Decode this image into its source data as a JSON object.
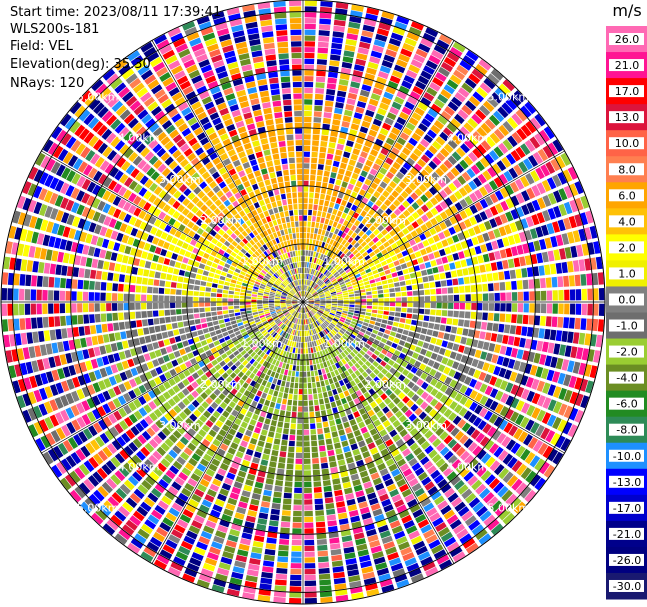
{
  "header": {
    "start_time": "Start time: 2023/08/11 17:39:41",
    "instrument": "WLS200s-181",
    "field": "Field: VEL",
    "elevation": "Elevation(deg): 35.30",
    "nrays": "NRays: 120"
  },
  "chart_data": {
    "type": "heatmap",
    "projection": "polar-ppi",
    "n_rays": 120,
    "range_rings_km": [
      1.0,
      2.0,
      3.0,
      4.0,
      5.0
    ],
    "max_range_km": 5.2,
    "spoke_interval_deg": 30,
    "ring_labels": {
      "upper_left": [
        "1.00km",
        "2.00km",
        "3.00km",
        "4.00km",
        "5.00km"
      ],
      "upper_right": [
        "1.00km",
        "2.00km",
        "3.00km",
        "4.00km",
        "5.00km"
      ],
      "lower_left": [
        "1.00km",
        "2.00km",
        "3.00km",
        "4.00km",
        "5.00km"
      ],
      "lower_right": [
        "1.00km",
        "2.00km",
        "3.00km",
        "4.00km",
        "5.00km"
      ]
    },
    "colorbar": {
      "unit": "m/s",
      "tick_labels": [
        "26.0",
        "21.0",
        "17.0",
        "13.0",
        "10.0",
        "8.0",
        "6.0",
        "4.0",
        "2.0",
        "1.0",
        "0.0",
        "-1.0",
        "-2.0",
        "-4.0",
        "-6.0",
        "-8.0",
        "-10.0",
        "-13.0",
        "-17.0",
        "-21.0",
        "-26.0",
        "-30.0"
      ],
      "colors": [
        "#ff69b4",
        "#ff1493",
        "#ff0000",
        "#dc143c",
        "#ff6347",
        "#ff7f50",
        "#ffa500",
        "#ffc107",
        "#ffff00",
        "#f0f000",
        "#808080",
        "#6e6e6e",
        "#9acd32",
        "#6b8e23",
        "#228b22",
        "#2e8b57",
        "#1e90ff",
        "#0000ff",
        "#0000cd",
        "#00008b",
        "#000080",
        "#191970"
      ]
    },
    "pattern_summary": {
      "north_sector_near": "positive 2-6 m/s (yellow/orange)",
      "south_sector_near": "negative -2 to -6 m/s (green)",
      "center": "near 0 m/s (gray)",
      "outer_ranges": "noisy, all values"
    }
  }
}
